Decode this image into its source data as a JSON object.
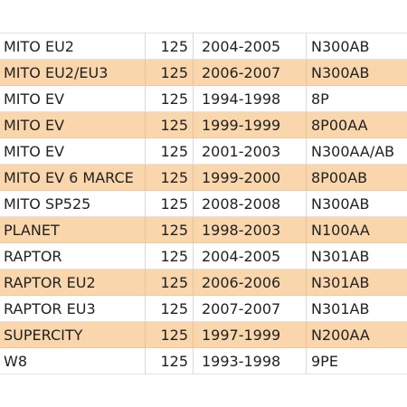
{
  "rows": [
    {
      "model": "MITO EU2",
      "cc": "125",
      "years": "2004-2005",
      "code": "N300AB",
      "highlight": false
    },
    {
      "model": "MITO EU2/EU3",
      "cc": "125",
      "years": "2006-2007",
      "code": "N300AB",
      "highlight": true
    },
    {
      "model": "MITO EV",
      "cc": "125",
      "years": "1994-1998",
      "code": "8P",
      "highlight": false
    },
    {
      "model": "MITO EV",
      "cc": "125",
      "years": "1999-1999",
      "code": "8P00AA",
      "highlight": true
    },
    {
      "model": "MITO EV",
      "cc": "125",
      "years": "2001-2003",
      "code": "N300AA/AB",
      "highlight": false
    },
    {
      "model": "MITO EV 6 MARCE",
      "cc": "125",
      "years": "1999-2000",
      "code": "8P00AB",
      "highlight": true
    },
    {
      "model": "MITO SP525",
      "cc": "125",
      "years": "2008-2008",
      "code": "N300AB",
      "highlight": false
    },
    {
      "model": "PLANET",
      "cc": "125",
      "years": "1998-2003",
      "code": "N100AA",
      "highlight": true
    },
    {
      "model": "RAPTOR",
      "cc": "125",
      "years": "2004-2005",
      "code": "N301AB",
      "highlight": false
    },
    {
      "model": "RAPTOR EU2",
      "cc": "125",
      "years": "2006-2006",
      "code": "N301AB",
      "highlight": true
    },
    {
      "model": "RAPTOR EU3",
      "cc": "125",
      "years": "2007-2007",
      "code": "N301AB",
      "highlight": false
    },
    {
      "model": "SUPERCITY",
      "cc": "125",
      "years": "1997-1999",
      "code": "N200AA",
      "highlight": true
    },
    {
      "model": "W8",
      "cc": "125",
      "years": "1993-1998",
      "code": "9PE",
      "highlight": false
    }
  ],
  "colors": {
    "highlight_row": "#fad6ac",
    "text": "#222222",
    "grid": "#d9d9d9"
  }
}
